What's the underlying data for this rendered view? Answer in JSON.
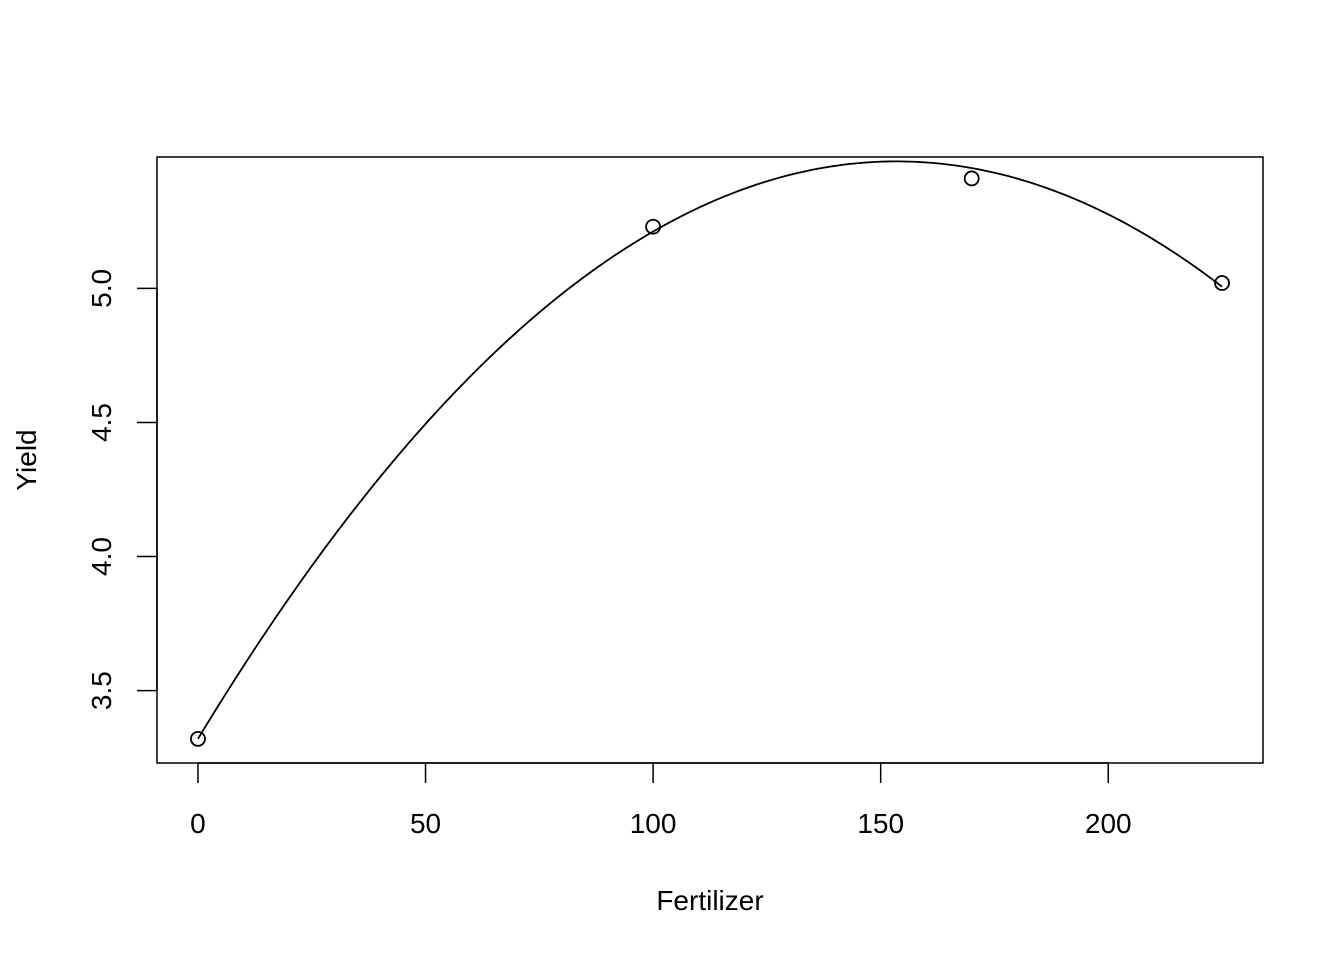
{
  "chart_data": {
    "type": "scatter",
    "title": "",
    "xlabel": "Fertilizer",
    "ylabel": "Yield",
    "xlim": [
      -9,
      234
    ],
    "ylim": [
      3.23,
      5.49
    ],
    "x_ticks": [
      0,
      50,
      100,
      150,
      200
    ],
    "x_tick_labels": [
      "0",
      "50",
      "100",
      "150",
      "200"
    ],
    "y_ticks": [
      3.5,
      4.0,
      4.5,
      5.0
    ],
    "y_tick_labels": [
      "3.5",
      "4.0",
      "4.5",
      "5.0"
    ],
    "grid": false,
    "legend": "none",
    "points": [
      {
        "x": 0,
        "y": 3.32
      },
      {
        "x": 100,
        "y": 5.23
      },
      {
        "x": 170,
        "y": 5.41
      },
      {
        "x": 225,
        "y": 5.02
      }
    ],
    "fit_curve": {
      "type": "quadratic",
      "coefficients": [
        3.32,
        0.02806,
        -9.14e-05
      ],
      "x_range": [
        0,
        225
      ]
    },
    "colors": {
      "points": "#000000",
      "line": "#000000",
      "frame": "#000000"
    }
  }
}
